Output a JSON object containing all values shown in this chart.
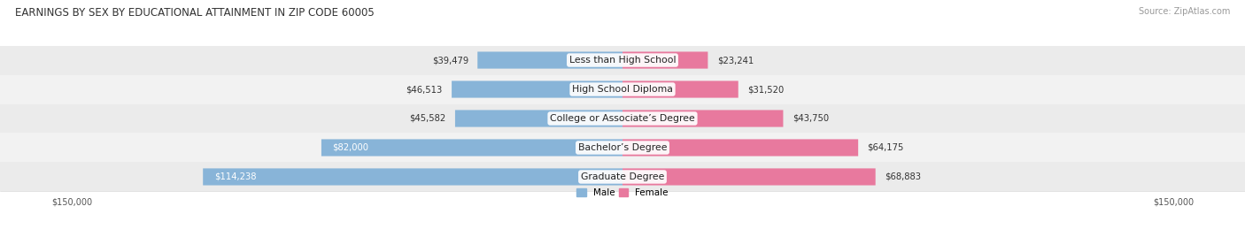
{
  "title": "EARNINGS BY SEX BY EDUCATIONAL ATTAINMENT IN ZIP CODE 60005",
  "source": "Source: ZipAtlas.com",
  "categories": [
    "Less than High School",
    "High School Diploma",
    "College or Associate’s Degree",
    "Bachelor’s Degree",
    "Graduate Degree"
  ],
  "male_values": [
    39479,
    46513,
    45582,
    82000,
    114238
  ],
  "female_values": [
    23241,
    31520,
    43750,
    64175,
    68883
  ],
  "max_value": 150000,
  "male_color": "#88b4d8",
  "female_color": "#e8799e",
  "bar_bg_color_even": "#ebebeb",
  "bar_bg_color_odd": "#f2f2f2",
  "title_fontsize": 8.5,
  "label_fontsize": 7.8,
  "value_fontsize": 7.2,
  "source_fontsize": 7,
  "legend_fontsize": 7.5,
  "axis_label_fontsize": 7
}
